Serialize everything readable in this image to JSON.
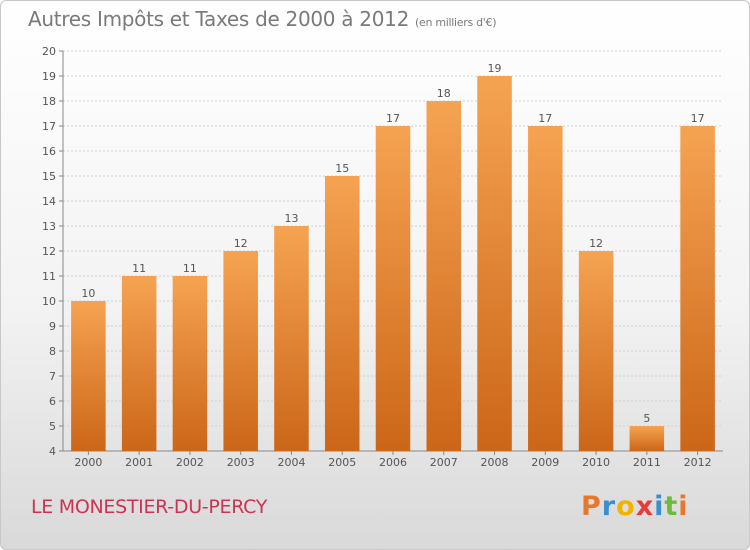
{
  "header": {
    "title": "Autres Impôts et Taxes de 2000 à 2012",
    "unit": "(en milliers d'€)"
  },
  "footer": {
    "commune": "LE MONESTIER-DU-PERCY",
    "brand_letters": [
      "P",
      "r",
      "o",
      "x",
      "i",
      "t",
      "i"
    ],
    "brand_colors": [
      "#e8772e",
      "#3a8fd0",
      "#f0b400",
      "#e83a3a",
      "#3a8fd0",
      "#6cbb3c",
      "#e8772e"
    ]
  },
  "colors": {
    "bar_top": "#f5a352",
    "bar_bottom": "#cc6618",
    "grid": "#d0d0d0",
    "title": "#7a7a7a",
    "commune": "#cc3355"
  },
  "chart_data": {
    "type": "bar",
    "title": "Autres Impôts et Taxes de 2000 à 2012",
    "xlabel": "",
    "ylabel": "",
    "categories": [
      "2000",
      "2001",
      "2002",
      "2003",
      "2004",
      "2005",
      "2006",
      "2007",
      "2008",
      "2009",
      "2010",
      "2011",
      "2012"
    ],
    "values": [
      10,
      11,
      11,
      12,
      13,
      15,
      17,
      18,
      19,
      17,
      12,
      5,
      17
    ],
    "ylim": [
      4,
      20
    ],
    "yticks": [
      4,
      5,
      6,
      7,
      8,
      9,
      10,
      11,
      12,
      13,
      14,
      15,
      16,
      17,
      18,
      19,
      20
    ],
    "grid": true,
    "data_labels": true
  }
}
